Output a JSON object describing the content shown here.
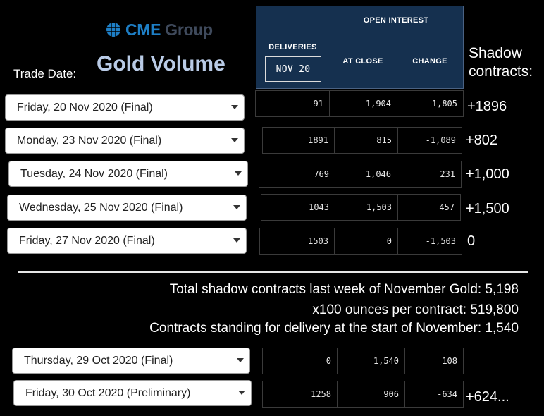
{
  "logo": {
    "text_prefix": "CME",
    "text_suffix": " Group"
  },
  "page_title": "Gold Volume",
  "trade_date_label": "Trade Date:",
  "table_header": {
    "deliveries": "DELIVERIES",
    "month": "NOV 20",
    "open_interest": "OPEN INTEREST",
    "at_close": "AT CLOSE",
    "change": "CHANGE"
  },
  "shadow_header": "Shadow contracts:",
  "rows": [
    {
      "date": "Friday, 20 Nov 2020 (Final)",
      "deliveries": "91",
      "at_close": "1,904",
      "change": "1,805",
      "shadow": "+1896"
    },
    {
      "date": "Monday, 23 Nov 2020 (Final)",
      "deliveries": "1891",
      "at_close": "815",
      "change": "-1,089",
      "shadow": "+802"
    },
    {
      "date": "Tuesday, 24 Nov 2020 (Final)",
      "deliveries": "769",
      "at_close": "1,046",
      "change": "231",
      "shadow": "+1,000"
    },
    {
      "date": "Wednesday, 25 Nov 2020 (Final)",
      "deliveries": "1043",
      "at_close": "1,503",
      "change": "457",
      "shadow": "+1,500"
    },
    {
      "date": "Friday, 27 Nov 2020 (Final)",
      "deliveries": "1503",
      "at_close": "0",
      "change": "-1,503",
      "shadow": "0"
    }
  ],
  "summary": {
    "line1": "Total shadow contracts last week of November Gold: 5,198",
    "line2": "x100 ounces per contract: 519,800",
    "line3": "Contracts standing for delivery at the start of November: 1,540"
  },
  "oct_rows": [
    {
      "date": "Thursday, 29 Oct 2020 (Final)",
      "deliveries": "0",
      "at_close": "1,540",
      "change": "108",
      "shadow": ""
    },
    {
      "date": "Friday, 30 Oct 2020 (Preliminary)",
      "deliveries": "1258",
      "at_close": "906",
      "change": "-634",
      "shadow": "+624..."
    }
  ],
  "colors": {
    "header_bg": "#15304f",
    "title": "#b9cbe6",
    "logo_blue": "#1e7fc6"
  }
}
